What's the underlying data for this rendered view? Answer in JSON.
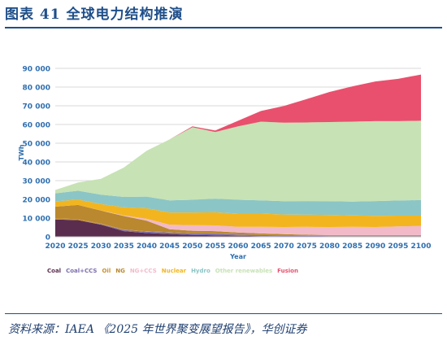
{
  "header": {
    "title": "图表 41    全球电力结构推演"
  },
  "source": "资料来源：IAEA 《2025 年世界聚变展望报告》，华创证券",
  "colors": {
    "title_blue": "#1f4f8a",
    "axis_text": "#2f6fb0"
  },
  "chart_data": {
    "type": "area",
    "stacked": true,
    "xlabel": "Year",
    "ylabel": "TWh",
    "x": [
      2020,
      2025,
      2030,
      2035,
      2040,
      2045,
      2050,
      2055,
      2060,
      2065,
      2070,
      2075,
      2080,
      2085,
      2090,
      2095,
      2100
    ],
    "xticks": [
      "2020",
      "2025",
      "2030",
      "2035",
      "2040",
      "2045",
      "2050",
      "2055",
      "2060",
      "2065",
      "2070",
      "2075",
      "2080",
      "2085",
      "2090",
      "2095",
      "2100"
    ],
    "ylim": [
      0,
      90000
    ],
    "yticks": [
      0,
      10000,
      20000,
      30000,
      40000,
      50000,
      60000,
      70000,
      80000,
      90000
    ],
    "ytick_labels": [
      "0",
      "10 000",
      "20 000",
      "30 000",
      "40 000",
      "50 000",
      "60 000",
      "70 000",
      "80 000",
      "90 000"
    ],
    "grid": true,
    "legend_position": "bottom-left",
    "series": [
      {
        "name": "Coal",
        "color": "#5a2d4f",
        "values": [
          9200,
          8900,
          6500,
          3000,
          2000,
          1500,
          1000,
          800,
          500,
          300,
          200,
          100,
          100,
          100,
          100,
          100,
          100
        ]
      },
      {
        "name": "Coal+CCS",
        "color": "#7c6cab",
        "values": [
          0,
          0,
          200,
          600,
          700,
          800,
          800,
          900,
          700,
          600,
          500,
          400,
          300,
          300,
          300,
          300,
          300
        ]
      },
      {
        "name": "Oil",
        "color": "#c8902e",
        "values": [
          700,
          500,
          400,
          300,
          200,
          200,
          100,
          100,
          100,
          100,
          100,
          100,
          100,
          100,
          100,
          100,
          100
        ]
      },
      {
        "name": "NG",
        "color": "#b9882f",
        "values": [
          6200,
          7600,
          6900,
          7200,
          5700,
          1500,
          1300,
          1200,
          1000,
          800,
          600,
          500,
          400,
          400,
          400,
          400,
          400
        ]
      },
      {
        "name": "NG+CCS",
        "color": "#f2b9c9",
        "values": [
          0,
          0,
          100,
          300,
          1000,
          2500,
          3000,
          3100,
          3000,
          3500,
          3800,
          4200,
          4300,
          4400,
          4300,
          4600,
          4900
        ]
      },
      {
        "name": "Nuclear",
        "color": "#f2b51f",
        "values": [
          2800,
          2900,
          3400,
          4400,
          5600,
          6500,
          6800,
          7000,
          7100,
          7100,
          6700,
          6500,
          6500,
          6100,
          6000,
          5800,
          5500
        ]
      },
      {
        "name": "Hydro",
        "color": "#8cc5c5",
        "values": [
          4300,
          4700,
          5000,
          5500,
          6300,
          6500,
          6800,
          7300,
          7400,
          7100,
          7100,
          7300,
          7300,
          7400,
          7900,
          8100,
          8300
        ]
      },
      {
        "name": "Other renewables",
        "color": "#c7e2b4",
        "values": [
          1800,
          4400,
          8500,
          15700,
          24500,
          32500,
          38700,
          35600,
          39200,
          42000,
          42000,
          42000,
          42300,
          42700,
          42700,
          42400,
          42400
        ]
      },
      {
        "name": "Fusion",
        "color": "#e9506d",
        "values": [
          0,
          0,
          0,
          0,
          0,
          0,
          500,
          800,
          3000,
          5700,
          8900,
          12500,
          16100,
          18900,
          21200,
          22600,
          24700
        ]
      }
    ]
  }
}
